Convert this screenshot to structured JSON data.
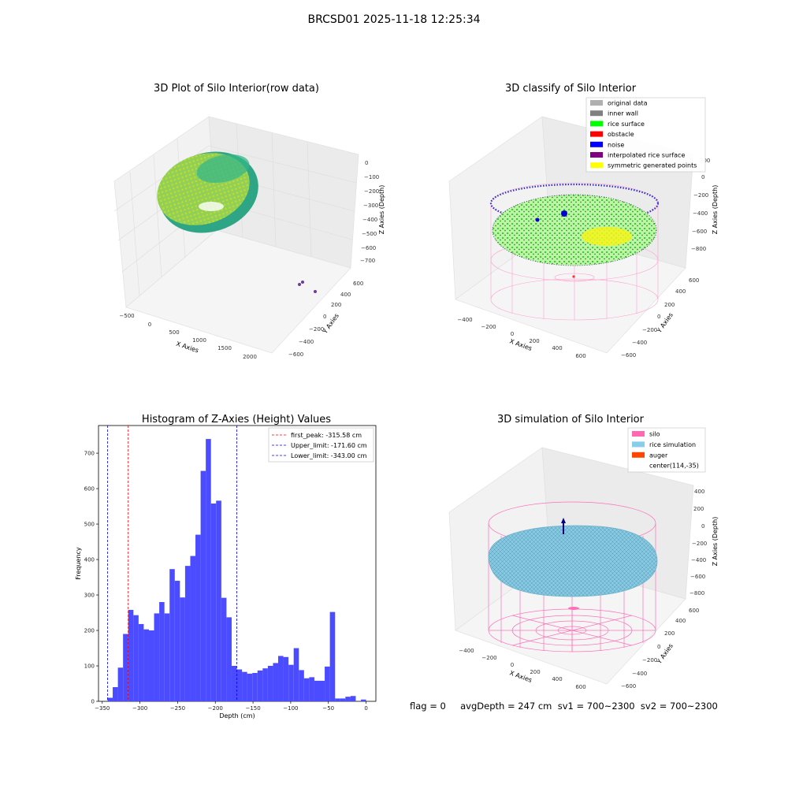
{
  "figure": {
    "suptitle": "BRCSD01 2025-11-18 12:25:34",
    "status_text": "flag = 0     avgDepth = 247 cm  sv1 = 700~2300  sv2 = 700~2300"
  },
  "chart_data": [
    {
      "type": "scatter",
      "projection": "3d",
      "title": "3D Plot of Silo Interior(row data)",
      "xlabel": "X Axies",
      "ylabel": "Y Axies",
      "zlabel": "Z Axies (Depth)",
      "xticks": [
        "−500",
        "0",
        "500",
        "1000",
        "1500",
        "2000"
      ],
      "yticks": [
        "−600",
        "−400",
        "−200",
        "0",
        "200",
        "400",
        "600"
      ],
      "zticks": [
        "0",
        "−100",
        "−200",
        "−300",
        "−400",
        "−500",
        "−600",
        "−700"
      ],
      "colors": {
        "high": "#d4e21a",
        "mid": "#3db97a",
        "low": "#20a386",
        "outlier": "#6a3d9a"
      }
    },
    {
      "type": "scatter",
      "projection": "3d",
      "title": "3D classify of Silo Interior",
      "xlabel": "X Axies",
      "ylabel": "Y Axies",
      "zlabel": "Z Axies (Depth)",
      "xticks": [
        "−400",
        "−200",
        "0",
        "200",
        "400",
        "600"
      ],
      "yticks": [
        "−600",
        "−400",
        "−200",
        "0",
        "200",
        "400",
        "600"
      ],
      "zticks": [
        "200",
        "0",
        "−200",
        "−400",
        "−600",
        "−800"
      ],
      "legend": [
        {
          "label": "original data",
          "color": "#b0b0b0"
        },
        {
          "label": "inner wall",
          "color": "#808080"
        },
        {
          "label": "rice surface",
          "color": "#00ff00"
        },
        {
          "label": "obstacle",
          "color": "#ff0000"
        },
        {
          "label": "noise",
          "color": "#0000ff"
        },
        {
          "label": "interpolated rice surface",
          "color": "#800080"
        },
        {
          "label": "symmetric generated points",
          "color": "#ffff00"
        }
      ]
    },
    {
      "type": "bar",
      "title": "Histogram of Z-Axies (Height) Values",
      "xlabel": "Depth (cm)",
      "ylabel": "Frequency",
      "xlim": [
        -355,
        13
      ],
      "ylim": [
        0,
        778
      ],
      "xticks": [
        -350,
        -300,
        -250,
        -200,
        -150,
        -100,
        -50,
        0
      ],
      "yticks": [
        0,
        100,
        200,
        300,
        400,
        500,
        600,
        700
      ],
      "bar_color": "#4b4bff",
      "bin_start": -343,
      "bin_width": 6.86,
      "values": [
        10,
        40,
        95,
        190,
        258,
        243,
        218,
        203,
        200,
        248,
        280,
        248,
        373,
        340,
        293,
        382,
        410,
        470,
        650,
        740,
        558,
        566,
        292,
        237,
        100,
        90,
        83,
        78,
        80,
        87,
        93,
        100,
        108,
        128,
        125,
        103,
        150,
        88,
        65,
        68,
        58,
        58,
        98,
        252,
        8,
        8,
        13,
        15,
        0,
        5
      ],
      "vlines": [
        {
          "label": "first_peak: -315.58 cm",
          "x": -315.58,
          "color": "#ff0000"
        },
        {
          "label": "Upper_limit: -171.60 cm",
          "x": -171.6,
          "color": "#0000ff"
        },
        {
          "label": "Lower_limit: -343.00 cm",
          "x": -343.0,
          "color": "#0000ff"
        }
      ]
    },
    {
      "type": "scatter",
      "projection": "3d",
      "title": "3D simulation of Silo Interior",
      "xlabel": "X Axies",
      "ylabel": "Y Axies",
      "zlabel": "Z Axies (Depth)",
      "xticks": [
        "−400",
        "−200",
        "0",
        "200",
        "400",
        "600"
      ],
      "yticks": [
        "−600",
        "−400",
        "−200",
        "0",
        "200",
        "400",
        "600"
      ],
      "zticks": [
        "400",
        "200",
        "0",
        "−200",
        "−400",
        "−600",
        "−800"
      ],
      "legend": [
        {
          "label": "silo",
          "color": "#ff69b4"
        },
        {
          "label": "rice simulation",
          "color": "#87ceeb"
        },
        {
          "label": "auger",
          "color": "#ff4500"
        },
        {
          "label": "center(114,-35)",
          "color": null
        }
      ]
    }
  ]
}
